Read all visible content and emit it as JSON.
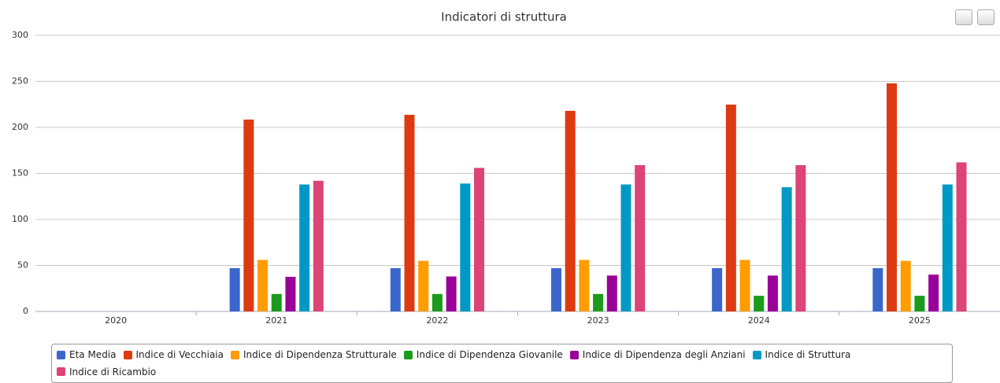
{
  "chart_data": {
    "type": "bar",
    "title": "Indicatori di struttura",
    "categories": [
      "2020",
      "2021",
      "2022",
      "2023",
      "2024",
      "2025"
    ],
    "series": [
      {
        "name": "Eta Media",
        "color": "#3a66cc",
        "values": [
          null,
          47,
          47,
          47,
          47,
          47
        ]
      },
      {
        "name": "Indice di Vecchiaia",
        "color": "#dd3a12",
        "values": [
          null,
          208.5,
          213.7,
          218,
          224.8,
          247.9
        ]
      },
      {
        "name": "Indice di Dipendenza Strutturale",
        "color": "#ff9c00",
        "values": [
          null,
          56,
          55,
          56,
          56,
          55
        ]
      },
      {
        "name": "Indice di Dipendenza Giovanile",
        "color": "#1c9a1c",
        "values": [
          null,
          19,
          19,
          19,
          17,
          17
        ]
      },
      {
        "name": "Indice di Dipendenza degli Anziani",
        "color": "#990099",
        "values": [
          null,
          37.6,
          38,
          39,
          39,
          40
        ]
      },
      {
        "name": "Indice di Struttura",
        "color": "#0099c6",
        "values": [
          null,
          138,
          139,
          138,
          135,
          138
        ]
      },
      {
        "name": "Indice di Ricambio",
        "color": "#dd4477",
        "values": [
          null,
          142,
          156,
          159,
          159,
          162
        ]
      }
    ],
    "ylim": [
      0,
      300
    ],
    "yticks": [
      0,
      50,
      100,
      150,
      200,
      250,
      300
    ],
    "grid": true,
    "legend": "bottom"
  }
}
